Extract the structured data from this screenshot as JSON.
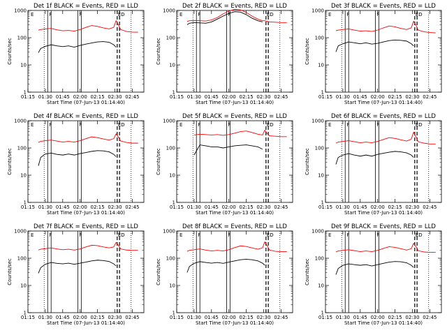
{
  "chart_data": {
    "type": "line",
    "layout": "3x3 grid",
    "x_ticks": [
      "01:15",
      "01:30",
      "01:45",
      "02:00",
      "02:15",
      "02:30",
      "02:45"
    ],
    "x_range": [
      "01:15",
      "02:55"
    ],
    "xlabel": "Start Time (07-Jun-13 01:14:40)",
    "ylabel": "Counts/sec",
    "y_scale": "log",
    "y_range": [
      1,
      1000
    ],
    "y_ticks": [
      "1",
      "10",
      "100",
      "1000"
    ],
    "series_colors": {
      "events": "#000000",
      "lld": "#ff0000"
    },
    "flags": [
      "E",
      "F",
      "F",
      "ED"
    ],
    "marker_times": {
      "dotted": [
        "01:29",
        "02:44"
      ],
      "solid": [
        [
          "01:32",
          "01:35"
        ],
        [
          "01:58",
          "02:01"
        ]
      ],
      "dashed": [
        "02:32",
        "02:34"
      ]
    },
    "panels": [
      {
        "title": "Det 1f BLACK = Events, RED = LLD",
        "x": [
          "01:24",
          "01:26",
          "01:30",
          "01:35",
          "01:40",
          "01:45",
          "01:50",
          "01:55",
          "02:00",
          "02:05",
          "02:10",
          "02:15",
          "02:20",
          "02:25",
          "02:29",
          "02:31",
          "02:33",
          "02:35",
          "02:40",
          "02:45",
          "02:50"
        ],
        "events": [
          28,
          40,
          48,
          55,
          50,
          47,
          50,
          45,
          52,
          58,
          64,
          70,
          72,
          68,
          55,
          45,
          null,
          null,
          null,
          null,
          null
        ],
        "lld": [
          190,
          200,
          210,
          220,
          195,
          180,
          185,
          175,
          200,
          240,
          280,
          260,
          230,
          210,
          240,
          420,
          300,
          200,
          170,
          160,
          160
        ]
      },
      {
        "title": "Det 2f BLACK = Events, RED = LLD",
        "x": [
          "01:24",
          "01:26",
          "01:30",
          "01:35",
          "01:40",
          "01:45",
          "01:50",
          "01:55",
          "02:00",
          "02:05",
          "02:10",
          "02:15",
          "02:20",
          "02:25",
          "02:29",
          "02:31",
          "02:33",
          "02:35",
          "02:40",
          "02:45",
          "02:50"
        ],
        "events": [
          300,
          340,
          360,
          350,
          340,
          380,
          480,
          620,
          780,
          900,
          870,
          700,
          520,
          420,
          380,
          null,
          null,
          null,
          null,
          null,
          null
        ],
        "lld": [
          400,
          420,
          430,
          420,
          410,
          450,
          550,
          750,
          950,
          1100,
          1050,
          850,
          620,
          480,
          420,
          420,
          400,
          380,
          370,
          360,
          360
        ]
      },
      {
        "title": "Det 3f BLACK = Events, RED = LLD",
        "x": [
          "01:24",
          "01:26",
          "01:30",
          "01:35",
          "01:40",
          "01:45",
          "01:50",
          "01:55",
          "02:00",
          "02:05",
          "02:10",
          "02:15",
          "02:20",
          "02:25",
          "02:29",
          "02:31",
          "02:33",
          "02:35",
          "02:40",
          "02:45",
          "02:50"
        ],
        "events": [
          30,
          50,
          60,
          70,
          65,
          60,
          65,
          58,
          62,
          70,
          78,
          82,
          80,
          75,
          60,
          50,
          null,
          null,
          null,
          null,
          null
        ],
        "lld": [
          180,
          190,
          200,
          210,
          190,
          175,
          180,
          170,
          190,
          230,
          270,
          250,
          220,
          200,
          230,
          400,
          290,
          190,
          165,
          155,
          150
        ]
      },
      {
        "title": "Det 4f BLACK = Events, RED = LLD",
        "x": [
          "01:24",
          "01:26",
          "01:30",
          "01:35",
          "01:40",
          "01:45",
          "01:50",
          "01:55",
          "02:00",
          "02:05",
          "02:10",
          "02:15",
          "02:20",
          "02:25",
          "02:29",
          "02:31",
          "02:33",
          "02:35",
          "02:40",
          "02:45",
          "02:50"
        ],
        "events": [
          22,
          45,
          60,
          65,
          58,
          55,
          60,
          55,
          62,
          68,
          75,
          80,
          78,
          72,
          58,
          48,
          null,
          null,
          null,
          null,
          null
        ],
        "lld": [
          160,
          175,
          185,
          195,
          180,
          165,
          175,
          165,
          185,
          220,
          255,
          240,
          215,
          195,
          220,
          330,
          250,
          180,
          160,
          150,
          150
        ]
      },
      {
        "title": "Det 5f BLACK = Events, RED = LLD",
        "x": [
          "01:24",
          "01:26",
          "01:30",
          "01:35",
          "01:40",
          "01:45",
          "01:50",
          "01:55",
          "02:00",
          "02:05",
          "02:10",
          "02:15",
          "02:20",
          "02:25",
          "02:29",
          "02:31",
          "02:33",
          "02:35",
          "02:40",
          "02:45",
          "02:50"
        ],
        "events": [
          null,
          null,
          55,
          130,
          120,
          110,
          110,
          100,
          110,
          120,
          125,
          130,
          120,
          110,
          90,
          null,
          null,
          null,
          null,
          null,
          null
        ],
        "lld": [
          null,
          null,
          300,
          320,
          310,
          300,
          310,
          290,
          310,
          350,
          400,
          420,
          370,
          320,
          300,
          450,
          340,
          280,
          270,
          260,
          260
        ]
      },
      {
        "title": "Det 6f BLACK = Events, RED = LLD",
        "x": [
          "01:24",
          "01:26",
          "01:30",
          "01:35",
          "01:40",
          "01:45",
          "01:50",
          "01:55",
          "02:00",
          "02:05",
          "02:10",
          "02:15",
          "02:20",
          "02:25",
          "02:29",
          "02:31",
          "02:33",
          "02:35",
          "02:40",
          "02:45",
          "02:50"
        ],
        "events": [
          25,
          45,
          55,
          62,
          55,
          50,
          55,
          50,
          58,
          64,
          70,
          75,
          72,
          66,
          55,
          45,
          null,
          null,
          null,
          null,
          null
        ],
        "lld": [
          150,
          165,
          175,
          185,
          170,
          155,
          165,
          155,
          175,
          205,
          240,
          225,
          200,
          180,
          210,
          380,
          260,
          170,
          150,
          140,
          140
        ]
      },
      {
        "title": "Det 7f BLACK = Events, RED = LLD",
        "x": [
          "01:24",
          "01:26",
          "01:30",
          "01:35",
          "01:40",
          "01:45",
          "01:50",
          "01:55",
          "02:00",
          "02:05",
          "02:10",
          "02:15",
          "02:20",
          "02:25",
          "02:29",
          "02:31",
          "02:33",
          "02:35",
          "02:40",
          "02:45",
          "02:50"
        ],
        "events": [
          28,
          45,
          60,
          70,
          65,
          62,
          66,
          60,
          66,
          72,
          80,
          85,
          82,
          76,
          62,
          52,
          null,
          null,
          null,
          null,
          null
        ],
        "lld": [
          200,
          215,
          225,
          240,
          220,
          205,
          215,
          200,
          220,
          260,
          300,
          290,
          260,
          240,
          260,
          380,
          300,
          220,
          200,
          195,
          195
        ]
      },
      {
        "title": "Det 8f BLACK = Events, RED = LLD",
        "x": [
          "01:24",
          "01:26",
          "01:30",
          "01:35",
          "01:40",
          "01:45",
          "01:50",
          "01:55",
          "02:00",
          "02:05",
          "02:10",
          "02:15",
          "02:20",
          "02:25",
          "02:29",
          "02:31",
          "02:33",
          "02:35",
          "02:40",
          "02:45",
          "02:50"
        ],
        "events": [
          30,
          50,
          65,
          75,
          70,
          66,
          70,
          65,
          72,
          80,
          88,
          92,
          88,
          80,
          66,
          55,
          null,
          null,
          null,
          null,
          null
        ],
        "lld": [
          180,
          195,
          205,
          220,
          200,
          185,
          195,
          185,
          205,
          245,
          285,
          270,
          240,
          215,
          240,
          400,
          290,
          200,
          180,
          175,
          175
        ]
      },
      {
        "title": "Det 9f BLACK = Events, RED = LLD",
        "x": [
          "01:24",
          "01:26",
          "01:30",
          "01:35",
          "01:40",
          "01:45",
          "01:50",
          "01:55",
          "02:00",
          "02:05",
          "02:10",
          "02:15",
          "02:20",
          "02:25",
          "02:29",
          "02:31",
          "02:33",
          "02:35",
          "02:40",
          "02:45",
          "02:50"
        ],
        "events": [
          25,
          42,
          55,
          62,
          58,
          55,
          58,
          52,
          58,
          65,
          72,
          76,
          74,
          68,
          55,
          46,
          null,
          null,
          null,
          null,
          null
        ],
        "lld": [
          170,
          185,
          195,
          205,
          190,
          175,
          185,
          175,
          195,
          230,
          265,
          250,
          225,
          200,
          225,
          350,
          270,
          190,
          170,
          165,
          165
        ]
      }
    ]
  }
}
